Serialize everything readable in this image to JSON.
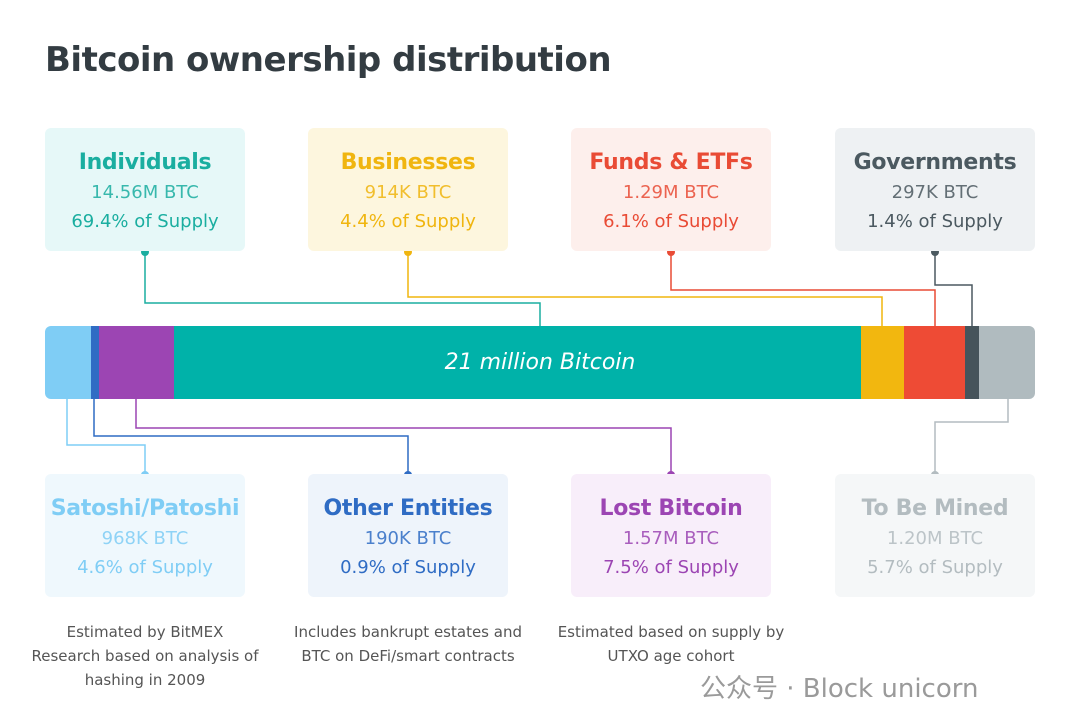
{
  "title": "Bitcoin ownership distribution",
  "bar_label": "21 million Bitcoin",
  "top_cards": [
    {
      "name": "Individuals",
      "amount": "14.56M BTC",
      "share": "69.4% of Supply",
      "color": "#1aaea0",
      "bg": "#e6f8f8"
    },
    {
      "name": "Businesses",
      "amount": "914K BTC",
      "share": "4.4% of Supply",
      "color": "#f0b50f",
      "bg": "#fdf6de"
    },
    {
      "name": "Funds & ETFs",
      "amount": "1.29M BTC",
      "share": "6.1% of Supply",
      "color": "#e94b35",
      "bg": "#fdefec"
    },
    {
      "name": "Governments",
      "amount": "297K BTC",
      "share": "1.4% of Supply",
      "color": "#4b5960",
      "bg": "#eef1f3"
    }
  ],
  "bottom_cards": [
    {
      "name": "Satoshi/Patoshi",
      "amount": "968K BTC",
      "share": "4.6% of Supply",
      "color": "#7fcdf5",
      "bg": "#eff8fd",
      "note": "Estimated by BitMEX Research based on analysis of hashing in 2009"
    },
    {
      "name": "Other Entities",
      "amount": "190K BTC",
      "share": "0.9% of Supply",
      "color": "#2f6cc4",
      "bg": "#eef4fb",
      "note": "Includes bankrupt estates and BTC on DeFi/smart contracts"
    },
    {
      "name": "Lost Bitcoin",
      "amount": "1.57M BTC",
      "share": "7.5% of Supply",
      "color": "#9c45b3",
      "bg": "#f8eefa",
      "note": "Estimated based on supply by UTXO age cohort"
    },
    {
      "name": "To Be Mined",
      "amount": "1.20M BTC",
      "share": "5.7% of Supply",
      "color": "#b3bcc0",
      "bg": "#f5f7f8",
      "note": ""
    }
  ],
  "segments": [
    {
      "label": "Satoshi/Patoshi",
      "percent": 4.6,
      "color": "#7fcdf5"
    },
    {
      "label": "Other Entities",
      "percent": 0.9,
      "color": "#2f6cc4"
    },
    {
      "label": "Lost Bitcoin",
      "percent": 7.5,
      "color": "#9c45b3"
    },
    {
      "label": "Individuals",
      "percent": 69.4,
      "color": "#00b2a9"
    },
    {
      "label": "Businesses",
      "percent": 4.4,
      "color": "#f2b70f"
    },
    {
      "label": "Funds & ETFs",
      "percent": 6.1,
      "color": "#ee4b35"
    },
    {
      "label": "Governments",
      "percent": 1.4,
      "color": "#46545b"
    },
    {
      "label": "To Be Mined",
      "percent": 5.7,
      "color": "#b0bbbf"
    }
  ],
  "watermark": "公众号 · Block unicorn"
}
